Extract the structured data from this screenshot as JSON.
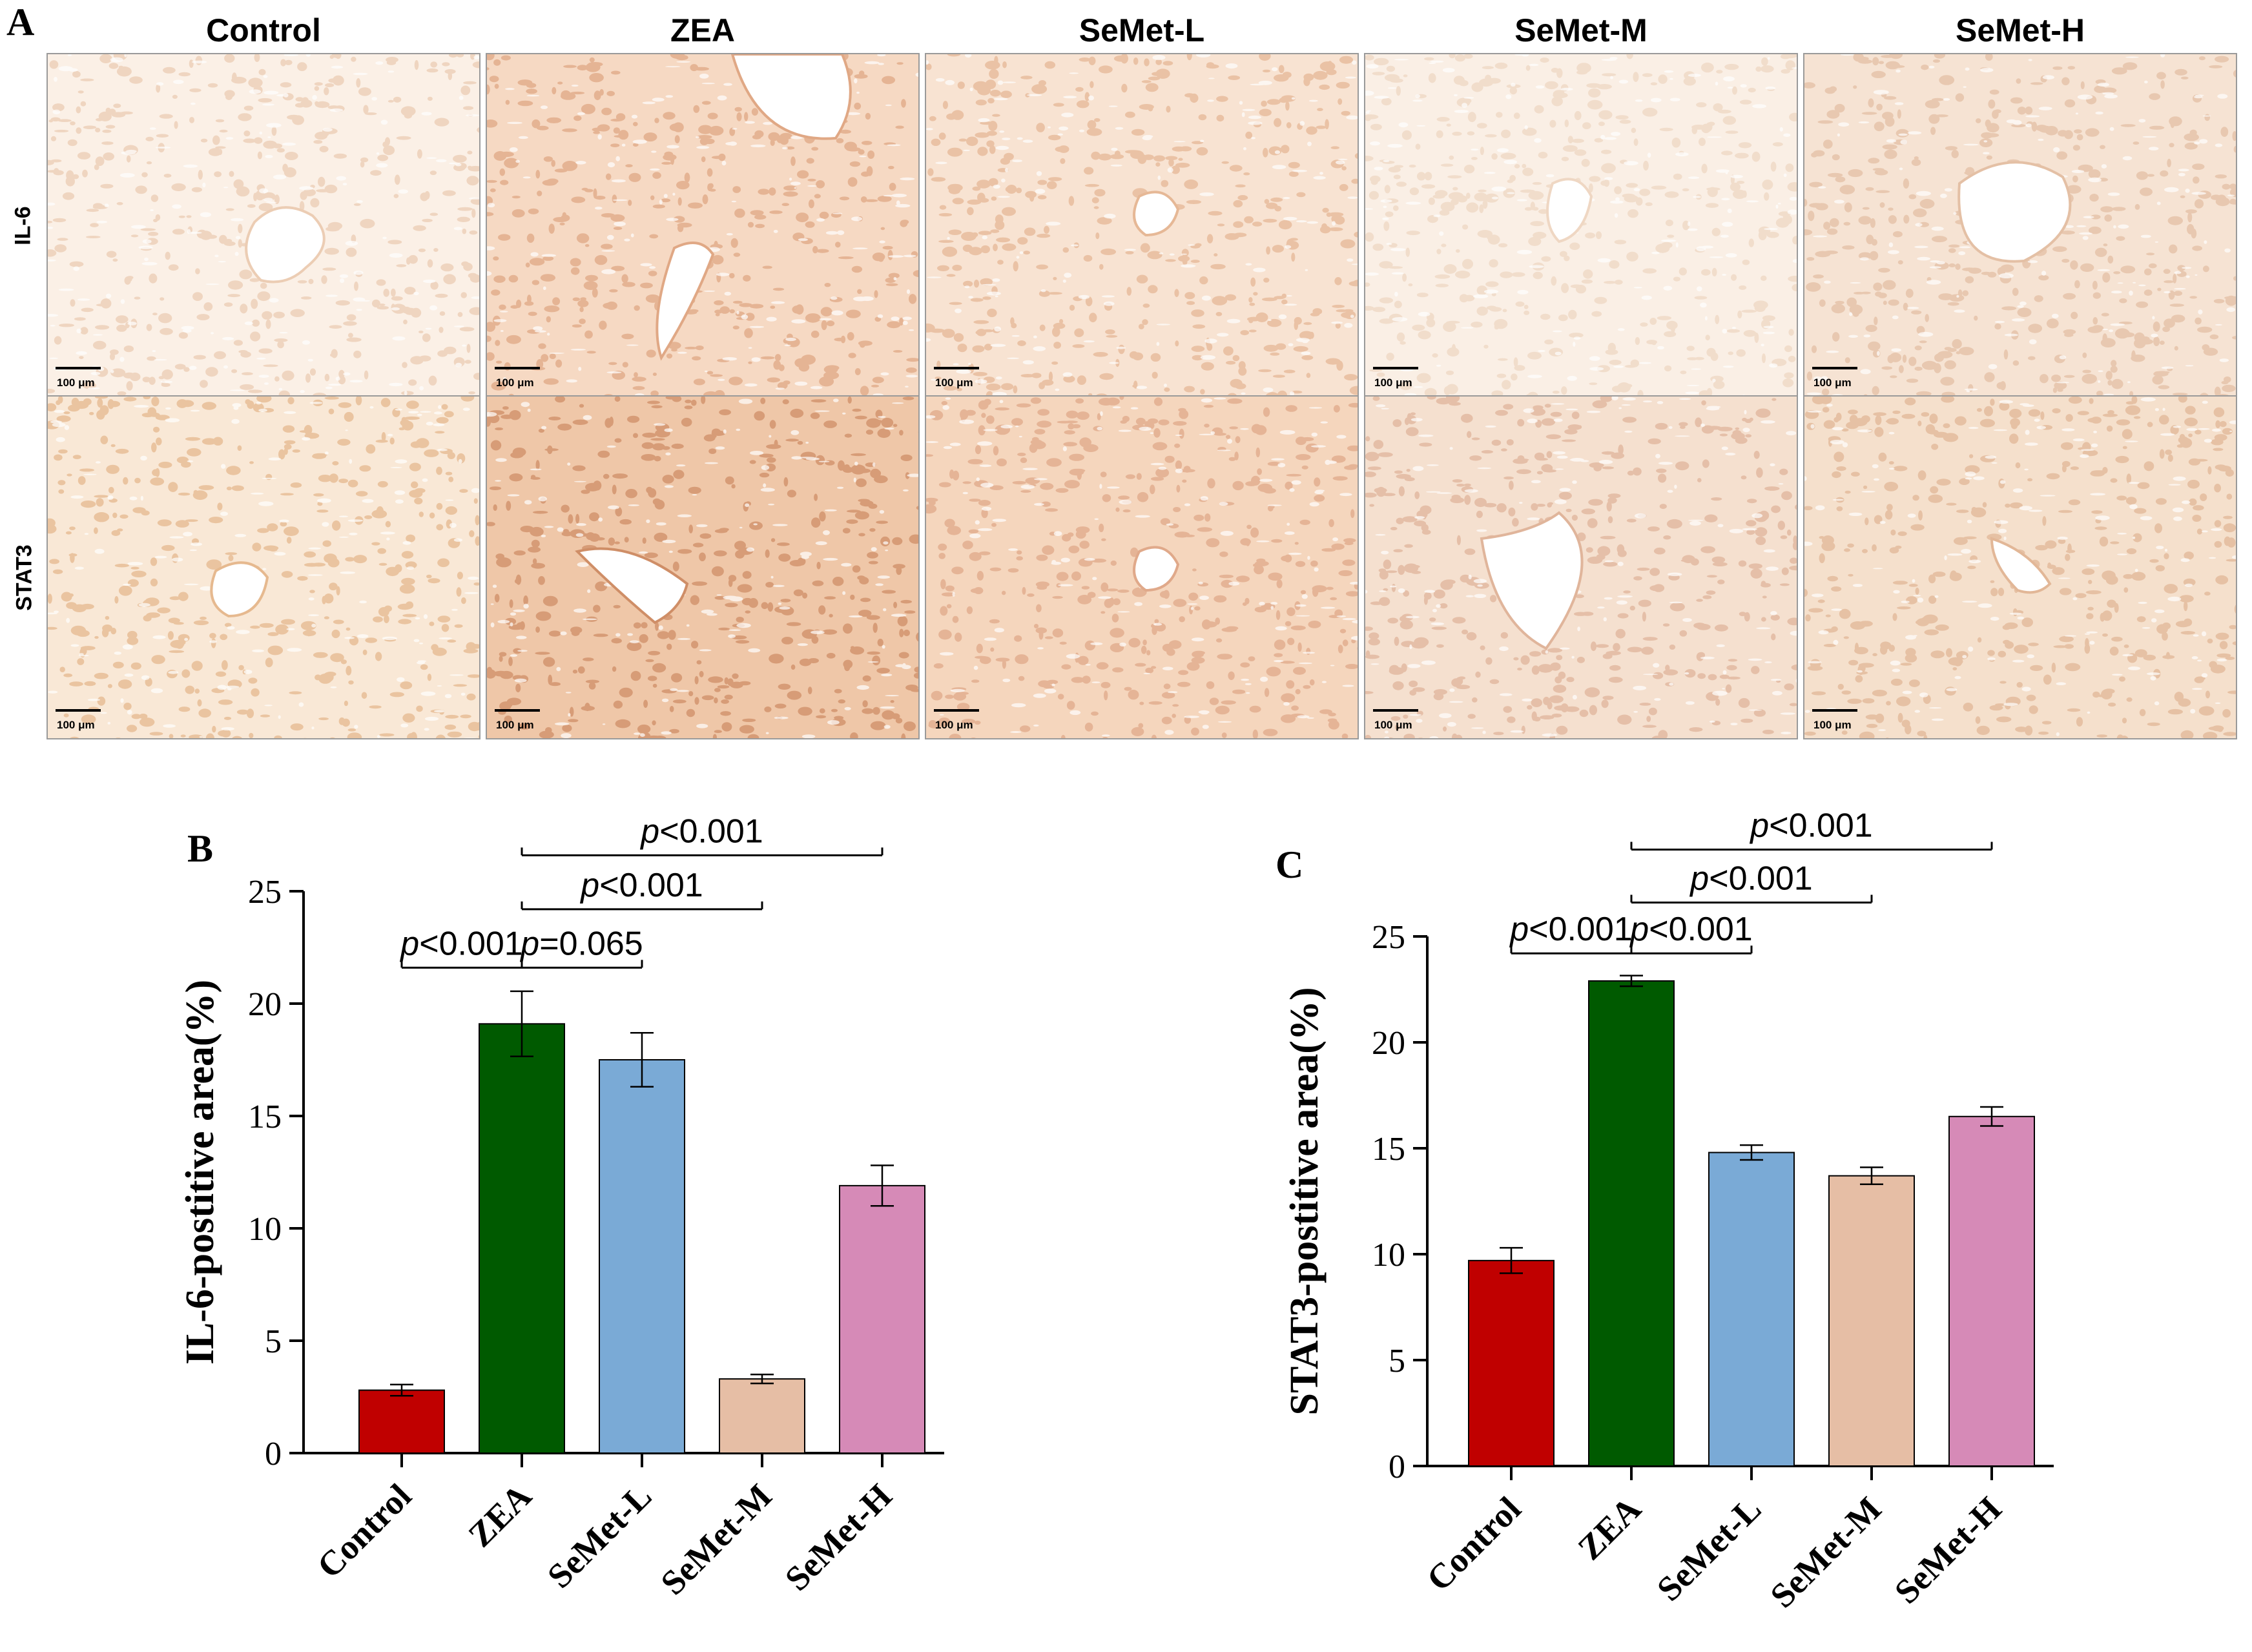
{
  "panel_a": {
    "letter": "A",
    "columns": [
      "Control",
      "ZEA",
      "SeMet-L",
      "SeMet-M",
      "SeMet-H"
    ],
    "rows": [
      "IL-6",
      "STAT3"
    ],
    "scale_bar": "100 μm"
  },
  "chart_data": [
    {
      "panel": "B",
      "type": "bar",
      "categories": [
        "Control",
        "ZEA",
        "SeMet-L",
        "SeMet-M",
        "SeMet-H"
      ],
      "values": [
        2.8,
        19.1,
        17.5,
        3.3,
        11.9
      ],
      "errors": [
        0.25,
        1.45,
        1.2,
        0.2,
        0.9
      ],
      "colors": [
        "#c00000",
        "#005a00",
        "#7aaad6",
        "#e6bea5",
        "#d68ab7"
      ],
      "ylabel": "IL-6-postitive area(%)",
      "ylim": [
        0,
        25
      ],
      "yticks": [
        0,
        5,
        10,
        15,
        20,
        25
      ],
      "grid": false,
      "comparisons": [
        {
          "from": 0,
          "to": 1,
          "y": 21.6,
          "label": "p<0.001"
        },
        {
          "from": 1,
          "to": 2,
          "y": 21.6,
          "label": "p=0.065"
        },
        {
          "from": 1,
          "to": 3,
          "y": 24.2,
          "label": "p<0.001"
        },
        {
          "from": 1,
          "to": 4,
          "y": 26.6,
          "label": "p<0.001"
        }
      ]
    },
    {
      "panel": "C",
      "type": "bar",
      "categories": [
        "Control",
        "ZEA",
        "SeMet-L",
        "SeMet-M",
        "SeMet-H"
      ],
      "values": [
        9.7,
        22.9,
        14.8,
        13.7,
        16.5
      ],
      "errors": [
        0.6,
        0.25,
        0.35,
        0.4,
        0.45
      ],
      "colors": [
        "#c00000",
        "#005a00",
        "#7aaad6",
        "#e6bea5",
        "#d68ab7"
      ],
      "ylabel": "STAT3-postitive area(%)",
      "ylim": [
        0,
        25
      ],
      "yticks": [
        0,
        5,
        10,
        15,
        20,
        25
      ],
      "grid": false,
      "comparisons": [
        {
          "from": 0,
          "to": 1,
          "y": 24.2,
          "label": "p<0.001"
        },
        {
          "from": 1,
          "to": 2,
          "y": 24.2,
          "label": "p<0.001"
        },
        {
          "from": 1,
          "to": 3,
          "y": 26.6,
          "label": "p<0.001"
        },
        {
          "from": 1,
          "to": 4,
          "y": 29.1,
          "label": "p<0.001"
        }
      ]
    }
  ]
}
